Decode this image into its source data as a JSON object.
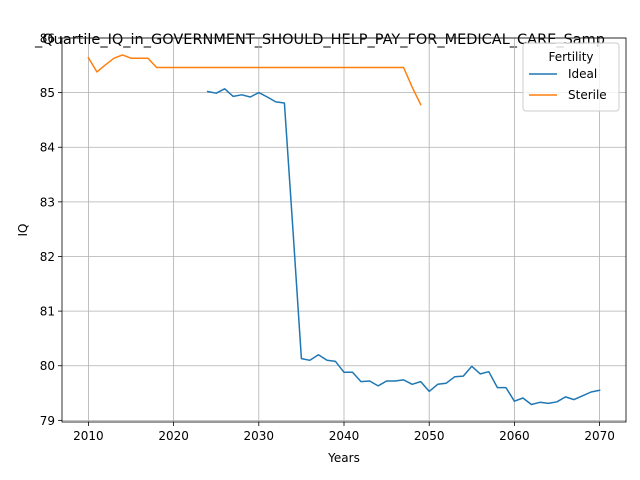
{
  "chart_data": {
    "type": "line",
    "title": "_Quartile_IQ_in_GOVERNMENT_SHOULD_HELP_PAY_FOR_MEDICAL_CARE_Samp",
    "xlabel": "Years",
    "ylabel": "IQ",
    "xlim": [
      2006.9,
      2073.1
    ],
    "ylim": [
      78.97,
      86.0
    ],
    "xticks": [
      2010,
      2020,
      2030,
      2040,
      2050,
      2060,
      2070
    ],
    "yticks": [
      79,
      80,
      81,
      82,
      83,
      84,
      85,
      86
    ],
    "grid": true,
    "legend": {
      "title": "Fertility",
      "position": "top-right"
    },
    "series": [
      {
        "name": "Ideal",
        "color": "#1f77b4",
        "x": [
          2024,
          2025,
          2026,
          2027,
          2028,
          2029,
          2030,
          2031,
          2032,
          2033,
          2034,
          2035,
          2036,
          2037,
          2038,
          2039,
          2040,
          2041,
          2042,
          2043,
          2044,
          2045,
          2046,
          2047,
          2048,
          2049,
          2050,
          2051,
          2052,
          2053,
          2054,
          2055,
          2056,
          2057,
          2058,
          2059,
          2060,
          2061,
          2062,
          2063,
          2064,
          2065,
          2066,
          2067,
          2068,
          2069,
          2070
        ],
        "y": [
          85.02,
          84.99,
          85.07,
          84.93,
          84.96,
          84.92,
          85.0,
          84.92,
          84.83,
          84.81,
          82.5,
          80.13,
          80.1,
          80.2,
          80.1,
          80.08,
          79.88,
          79.88,
          79.71,
          79.72,
          79.63,
          79.72,
          79.72,
          79.74,
          79.66,
          79.71,
          79.53,
          79.66,
          79.68,
          79.8,
          79.81,
          79.99,
          79.85,
          79.89,
          79.6,
          79.6,
          79.35,
          79.41,
          79.29,
          79.33,
          79.31,
          79.34,
          79.43,
          79.38,
          79.45,
          79.52,
          79.55
        ]
      },
      {
        "name": "Sterile",
        "color": "#ff7f0e",
        "x": [
          2010,
          2011,
          2012,
          2013,
          2014,
          2015,
          2016,
          2017,
          2018,
          2019,
          2020,
          2021,
          2022,
          2023,
          2024,
          2025,
          2026,
          2027,
          2028,
          2029,
          2030,
          2031,
          2032,
          2033,
          2034,
          2035,
          2036,
          2037,
          2038,
          2039,
          2040,
          2041,
          2042,
          2043,
          2044,
          2045,
          2046,
          2047,
          2048,
          2049
        ],
        "y": [
          85.64,
          85.38,
          85.51,
          85.63,
          85.69,
          85.63,
          85.63,
          85.63,
          85.46,
          85.46,
          85.46,
          85.46,
          85.46,
          85.46,
          85.46,
          85.46,
          85.46,
          85.46,
          85.46,
          85.46,
          85.46,
          85.46,
          85.46,
          85.46,
          85.46,
          85.46,
          85.46,
          85.46,
          85.46,
          85.46,
          85.46,
          85.46,
          85.46,
          85.46,
          85.46,
          85.46,
          85.46,
          85.46,
          85.1,
          84.78
        ]
      }
    ]
  }
}
